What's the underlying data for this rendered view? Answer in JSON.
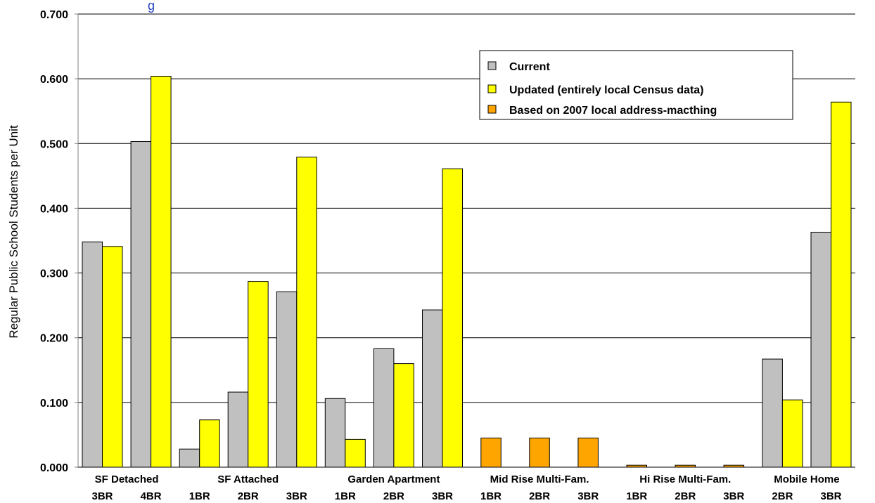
{
  "chart_data": {
    "type": "bar",
    "title_fragment": "g",
    "ylabel": "Regular Public School Students per Unit",
    "xlabel": "",
    "ylim": [
      0,
      0.7
    ],
    "yticks": [
      "0.000",
      "0.100",
      "0.200",
      "0.300",
      "0.400",
      "0.500",
      "0.600",
      "0.700"
    ],
    "grid": true,
    "legend_position": "top-right",
    "groups": [
      "SF Detached",
      "SF Attached",
      "Garden Apartment",
      "Mid Rise Multi-Fam.",
      "Hi Rise Multi-Fam.",
      "Mobile Home"
    ],
    "categories": [
      {
        "group": "SF Detached",
        "label": "3BR"
      },
      {
        "group": "SF Detached",
        "label": "4BR"
      },
      {
        "group": "SF Attached",
        "label": "1BR"
      },
      {
        "group": "SF Attached",
        "label": "2BR"
      },
      {
        "group": "SF Attached",
        "label": "3BR"
      },
      {
        "group": "Garden Apartment",
        "label": "1BR"
      },
      {
        "group": "Garden Apartment",
        "label": "2BR"
      },
      {
        "group": "Garden Apartment",
        "label": "3BR"
      },
      {
        "group": "Mid Rise Multi-Fam.",
        "label": "1BR"
      },
      {
        "group": "Mid Rise Multi-Fam.",
        "label": "2BR"
      },
      {
        "group": "Mid Rise Multi-Fam.",
        "label": "3BR"
      },
      {
        "group": "Hi Rise Multi-Fam.",
        "label": "1BR"
      },
      {
        "group": "Hi Rise Multi-Fam.",
        "label": "2BR"
      },
      {
        "group": "Hi Rise Multi-Fam.",
        "label": "3BR"
      },
      {
        "group": "Mobile Home",
        "label": "2BR"
      },
      {
        "group": "Mobile Home",
        "label": "3BR"
      }
    ],
    "series": [
      {
        "name": "Current",
        "color": "#c0c0c0",
        "values": [
          0.348,
          0.503,
          0.028,
          0.116,
          0.271,
          0.106,
          0.183,
          0.243,
          null,
          null,
          null,
          null,
          null,
          null,
          0.167,
          0.363
        ]
      },
      {
        "name": "Updated (entirely local Census data)",
        "color": "#ffff00",
        "values": [
          0.341,
          0.604,
          0.073,
          0.287,
          0.479,
          0.043,
          0.16,
          0.461,
          null,
          null,
          null,
          null,
          null,
          null,
          0.104,
          0.564
        ]
      },
      {
        "name": "Based on 2007 local address-macthing",
        "color": "#ffa500",
        "values": [
          null,
          null,
          null,
          null,
          null,
          null,
          null,
          null,
          0.045,
          0.045,
          0.045,
          0.003,
          0.003,
          0.003,
          null,
          null
        ]
      }
    ],
    "first_bar_series": [
      0,
      0,
      0,
      0,
      0,
      0,
      0,
      0,
      0,
      0,
      0,
      0,
      0,
      0,
      0,
      0
    ]
  }
}
